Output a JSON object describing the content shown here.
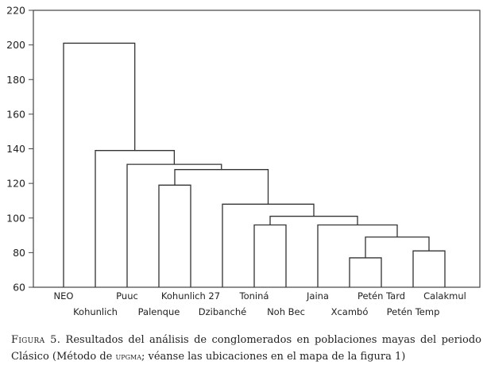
{
  "chart_data": {
    "type": "dendrogram",
    "ylim": [
      60,
      220
    ],
    "yticks": [
      60,
      80,
      100,
      120,
      140,
      160,
      180,
      200,
      220
    ],
    "leaves": [
      "NEO",
      "Kohunlich",
      "Puuc",
      "Palenque",
      "Kohunlich 27",
      "Dzibanché",
      "Toniná",
      "Noh Bec",
      "Jaina",
      "Xcambó",
      "Petén Tard",
      "Petén Temp",
      "Calakmul"
    ],
    "merges": [
      {
        "left": "Palenque",
        "right": "Kohunlich 27",
        "height": 119
      },
      {
        "left": "Toniná",
        "right": "Noh Bec",
        "height": 96
      },
      {
        "left": "Xcambó",
        "right": "Petén Tard",
        "height": 77
      },
      {
        "left": "Petén Temp",
        "right": "Calakmul",
        "height": 81
      },
      {
        "left": "Xcambó + Petén Tard",
        "right": "Petén Temp + Calakmul",
        "height": 89
      },
      {
        "left": "Jaina",
        "right": "Xcambó + Petén Tard + Petén Temp + Calakmul",
        "height": 96
      },
      {
        "left": "Toniná + Noh Bec",
        "right": "Jaina + ...",
        "height": 101
      },
      {
        "left": "Dzibanché",
        "right": "Toniná + ... + Calakmul",
        "height": 108
      },
      {
        "left": "Palenque + Kohunlich 27",
        "right": "Dzibanché + ...",
        "height": 128
      },
      {
        "left": "Puuc",
        "right": "Palenque + ...",
        "height": 131
      },
      {
        "left": "Kohunlich",
        "right": "Puuc + ...",
        "height": 139
      },
      {
        "left": "NEO",
        "right": "Kohunlich + ...",
        "height": 201
      }
    ]
  },
  "caption": {
    "figure_label": "Figura 5.",
    "text_before": " Resultados del análisis de conglomerados en poblaciones mayas del periodo Clásico (Método de ",
    "method": "upgma",
    "text_after": "; véanse las ubicaciones en el mapa de la figura 1)"
  }
}
